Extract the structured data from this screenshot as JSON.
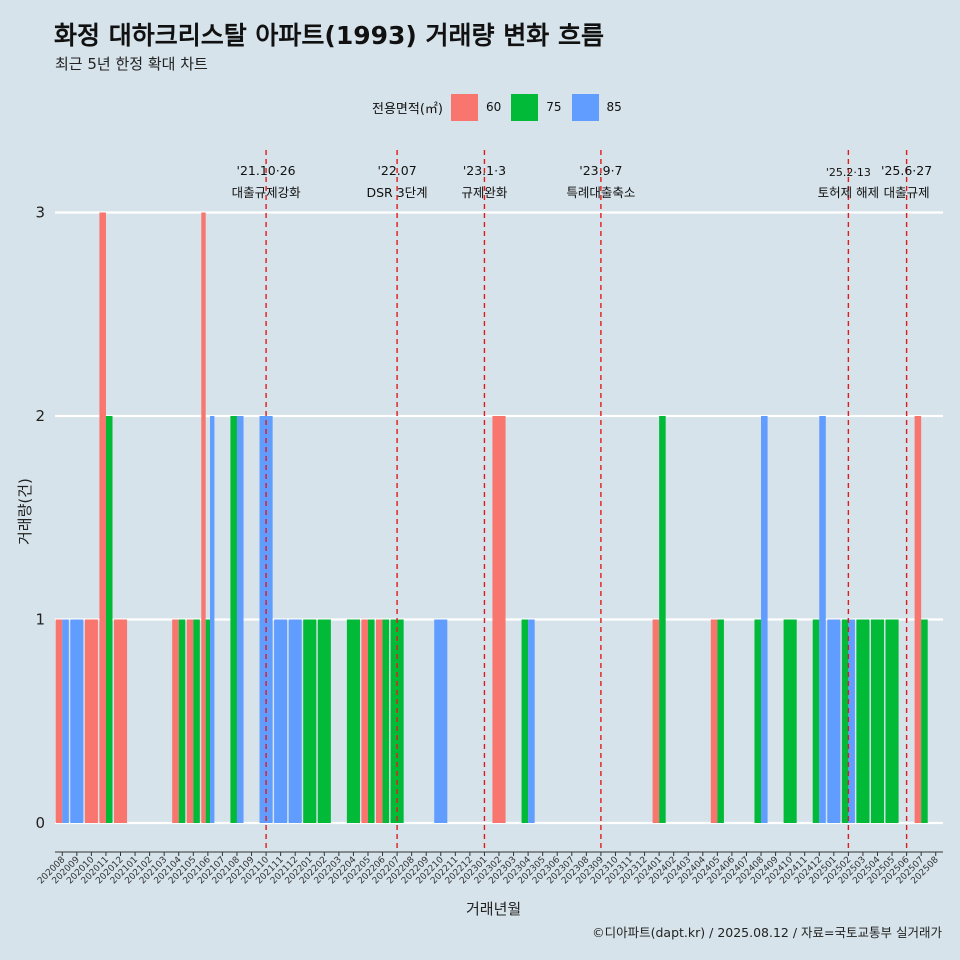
{
  "title": "화정 대하크리스탈 아파트(1993) 거래량 변화 흐름",
  "subtitle": "최근 5년 한정 확대 차트",
  "caption": "©디아파트(dapt.kr) / 2025.08.12 / 자료=국토교통부 실거래가",
  "legend": {
    "title": "전용면적(㎡)",
    "items": [
      {
        "label": "60",
        "color": "#f8766d"
      },
      {
        "label": "75",
        "color": "#00ba38"
      },
      {
        "label": "85",
        "color": "#619cff"
      }
    ]
  },
  "chart_data": {
    "type": "bar",
    "xlabel": "거래년월",
    "ylabel": "거래량(건)",
    "ylim": [
      0,
      3
    ],
    "yticks": [
      0,
      1,
      2,
      3
    ],
    "grid": true,
    "legend_position": "top",
    "categories": [
      "202008",
      "202009",
      "202010",
      "202011",
      "202012",
      "202101",
      "202102",
      "202103",
      "202104",
      "202105",
      "202106",
      "202107",
      "202108",
      "202109",
      "202110",
      "202111",
      "202112",
      "202201",
      "202202",
      "202203",
      "202204",
      "202205",
      "202206",
      "202207",
      "202208",
      "202209",
      "202210",
      "202211",
      "202212",
      "202301",
      "202302",
      "202303",
      "202304",
      "202305",
      "202306",
      "202307",
      "202308",
      "202309",
      "202310",
      "202311",
      "202312",
      "202401",
      "202402",
      "202403",
      "202404",
      "202405",
      "202406",
      "202407",
      "202408",
      "202409",
      "202410",
      "202411",
      "202412",
      "202501",
      "202502",
      "202503",
      "202504",
      "202505",
      "202506",
      "202507",
      "202508"
    ],
    "series": [
      {
        "name": "60",
        "color": "#f8766d",
        "values": [
          1,
          0,
          1,
          3,
          1,
          0,
          0,
          0,
          1,
          1,
          3,
          0,
          0,
          0,
          0,
          0,
          0,
          0,
          0,
          0,
          0,
          1,
          1,
          0,
          0,
          0,
          0,
          0,
          0,
          0,
          2,
          0,
          0,
          0,
          0,
          0,
          0,
          0,
          0,
          0,
          0,
          1,
          0,
          0,
          0,
          1,
          0,
          0,
          0,
          0,
          0,
          0,
          0,
          0,
          0,
          0,
          0,
          0,
          0,
          2,
          0
        ]
      },
      {
        "name": "75",
        "color": "#00ba38",
        "values": [
          0,
          0,
          0,
          2,
          0,
          0,
          0,
          0,
          1,
          1,
          1,
          0,
          2,
          0,
          0,
          0,
          0,
          1,
          1,
          0,
          1,
          1,
          1,
          1,
          0,
          0,
          0,
          0,
          0,
          0,
          0,
          0,
          1,
          0,
          0,
          0,
          0,
          0,
          0,
          0,
          0,
          2,
          0,
          0,
          0,
          1,
          0,
          0,
          1,
          0,
          1,
          0,
          1,
          0,
          1,
          1,
          1,
          1,
          0,
          1,
          0
        ]
      },
      {
        "name": "85",
        "color": "#619cff",
        "values": [
          1,
          1,
          0,
          0,
          0,
          0,
          0,
          0,
          0,
          0,
          2,
          0,
          2,
          0,
          2,
          1,
          1,
          0,
          0,
          0,
          0,
          0,
          0,
          0,
          0,
          0,
          1,
          0,
          0,
          0,
          0,
          0,
          1,
          0,
          0,
          0,
          0,
          0,
          0,
          0,
          0,
          0,
          0,
          0,
          0,
          0,
          0,
          0,
          2,
          0,
          0,
          0,
          2,
          1,
          1,
          0,
          0,
          0,
          0,
          0,
          0
        ]
      }
    ],
    "annotations": [
      {
        "category": "202110",
        "date": "'21.10·26",
        "label": "대출규제강화"
      },
      {
        "category": "202207",
        "date": "'22.07",
        "label": "DSR 3단계"
      },
      {
        "category": "202301",
        "date": "'23.1·3",
        "label": "규제완화"
      },
      {
        "category": "202309",
        "date": "'23.9·7",
        "label": "특례대출축소"
      },
      {
        "category": "202502",
        "date": "'25.2·13",
        "label": "토허제 해제"
      },
      {
        "category": "202506",
        "date": "'25.6·27",
        "label": "대출규제"
      }
    ]
  }
}
